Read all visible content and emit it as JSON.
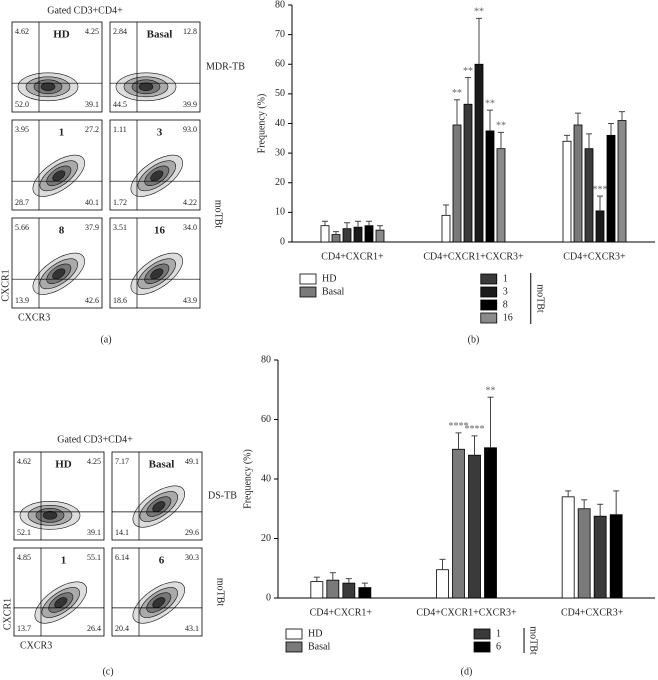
{
  "chart_data": [
    {
      "type": "bar",
      "panel_label": "(b)",
      "y_label": "Frequency (%)",
      "categories": [
        "CD4+CXCR1+",
        "CD4+CXCR1+CXCR3+",
        "CD4+CXCR3+"
      ],
      "ylim": [
        0,
        80
      ],
      "yticks": [
        0,
        10,
        20,
        30,
        40,
        50,
        60,
        70,
        80
      ],
      "legend_group_title": "moTBt",
      "series": [
        {
          "name": "HD",
          "color": "#ffffff",
          "values": [
            5.5,
            9,
            34
          ],
          "errors": [
            1.5,
            3.5,
            2
          ],
          "significance": [
            null,
            null,
            null
          ]
        },
        {
          "name": "Basal",
          "color": "#7a7a7a",
          "values": [
            2.5,
            39.5,
            39.5
          ],
          "errors": [
            1,
            8.5,
            4
          ],
          "significance": [
            null,
            "**",
            null
          ]
        },
        {
          "name": "1",
          "color": "#3a3a3a",
          "values": [
            4.5,
            46.5,
            31.5
          ],
          "errors": [
            2,
            9,
            5
          ],
          "significance": [
            null,
            "**",
            null
          ]
        },
        {
          "name": "3",
          "color": "#1a1a1a",
          "values": [
            5,
            60,
            10.5
          ],
          "errors": [
            2,
            15.5,
            5
          ],
          "significance": [
            null,
            "**",
            "***"
          ]
        },
        {
          "name": "8",
          "color": "#000000",
          "values": [
            5.5,
            37.5,
            36
          ],
          "errors": [
            1.5,
            7,
            4
          ],
          "significance": [
            null,
            "**",
            null
          ]
        },
        {
          "name": "16",
          "color": "#8a8a8a",
          "values": [
            4,
            31.5,
            41
          ],
          "errors": [
            1.5,
            5.5,
            3
          ],
          "significance": [
            null,
            "**",
            null
          ]
        }
      ]
    },
    {
      "type": "bar",
      "panel_label": "(d)",
      "y_label": "Frequency (%)",
      "categories": [
        "CD4+CXCR1+",
        "CD4+CXCR1+CXCR3+",
        "CD4+CXCR3+"
      ],
      "ylim": [
        0,
        80
      ],
      "yticks": [
        0,
        20,
        40,
        60,
        80
      ],
      "legend_group_title": "moTBt",
      "series": [
        {
          "name": "HD",
          "color": "#ffffff",
          "values": [
            5.5,
            9.5,
            34
          ],
          "errors": [
            1.5,
            3.5,
            2
          ],
          "significance": [
            null,
            null,
            null
          ]
        },
        {
          "name": "Basal",
          "color": "#7a7a7a",
          "values": [
            6,
            50,
            30
          ],
          "errors": [
            2.5,
            5.5,
            3
          ],
          "significance": [
            null,
            "****",
            null
          ]
        },
        {
          "name": "1",
          "color": "#3a3a3a",
          "values": [
            5,
            48,
            27.5
          ],
          "errors": [
            1.5,
            6.5,
            4
          ],
          "significance": [
            null,
            "****",
            null
          ]
        },
        {
          "name": "6",
          "color": "#000000",
          "values": [
            3.5,
            50.5,
            28
          ],
          "errors": [
            1.5,
            17,
            8
          ],
          "significance": [
            null,
            "**",
            null
          ]
        }
      ]
    }
  ],
  "flow_panels": [
    {
      "title": "Gated CD3+CD4+",
      "group_label": "MDR-TB",
      "treatment_label": "moTBt",
      "y_label": "CXCR1",
      "x_label": "CXCR3",
      "panel_label": "(a)",
      "plots": [
        {
          "label": "HD",
          "quadrants": [
            "4.62",
            "4.25",
            "52.0",
            "39.1"
          ]
        },
        {
          "label": "Basal",
          "quadrants": [
            "2.84",
            "12.8",
            "44.5",
            "39.9"
          ]
        },
        {
          "label": "1",
          "quadrants": [
            "3.95",
            "27.2",
            "28.7",
            "40.1"
          ]
        },
        {
          "label": "3",
          "quadrants": [
            "1.11",
            "93.0",
            "1.72",
            "4.22"
          ]
        },
        {
          "label": "8",
          "quadrants": [
            "5.66",
            "37.9",
            "13.9",
            "42.6"
          ]
        },
        {
          "label": "16",
          "quadrants": [
            "3.51",
            "34.0",
            "18.6",
            "43.9"
          ]
        }
      ]
    },
    {
      "title": "Gated CD3+CD4+",
      "group_label": "DS-TB",
      "treatment_label": "moTBt",
      "y_label": "CXCR1",
      "x_label": "CXCR3",
      "panel_label": "(c)",
      "plots": [
        {
          "label": "HD",
          "quadrants": [
            "4.62",
            "4.25",
            "52.1",
            "39.1"
          ]
        },
        {
          "label": "Basal",
          "quadrants": [
            "7.17",
            "49.1",
            "14.1",
            "29.6"
          ]
        },
        {
          "label": "1",
          "quadrants": [
            "4.85",
            "55.1",
            "13.7",
            "26.4"
          ]
        },
        {
          "label": "6",
          "quadrants": [
            "6.14",
            "30.3",
            "20.4",
            "43.1"
          ]
        }
      ]
    }
  ]
}
